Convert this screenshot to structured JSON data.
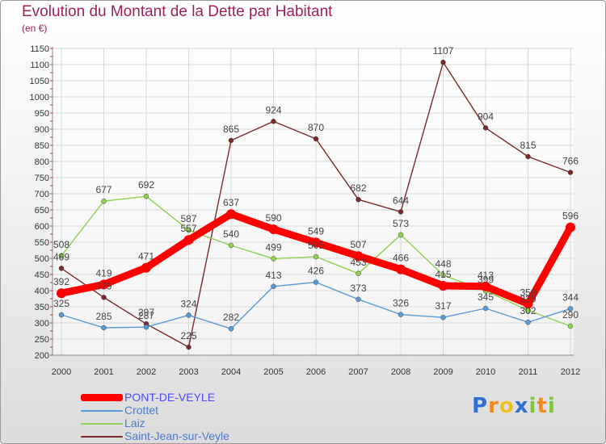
{
  "chart_data": {
    "type": "line",
    "title": "Evolution du Montant de la Dette par Habitant",
    "subtitle": "(en €)",
    "xlabel": "",
    "ylabel": "",
    "ylim": [
      200,
      1150
    ],
    "ytick_step": 50,
    "grid": true,
    "legend_position": "bottom-left",
    "x": [
      "2000",
      "2001",
      "2002",
      "2003",
      "2004",
      "2005",
      "2006",
      "2007",
      "2008",
      "2009",
      "2010",
      "2011",
      "2012"
    ],
    "series": [
      {
        "name": "PONT-DE-VEYLE",
        "color": "#ff0000",
        "values": [
          392,
          419,
          471,
          557,
          637,
          590,
          549,
          507,
          466,
          415,
          413,
          359,
          596
        ]
      },
      {
        "name": "Crottet",
        "color": "#5b9bd5",
        "values": [
          325,
          285,
          287,
          324,
          282,
          413,
          426,
          373,
          326,
          317,
          345,
          302,
          344
        ]
      },
      {
        "name": "Laiz",
        "color": "#8fd14f",
        "values": [
          508,
          677,
          692,
          587,
          540,
          499,
          505,
          453,
          573,
          448,
          399,
          339,
          290
        ]
      },
      {
        "name": "Saint-Jean-sur-Veyle",
        "color": "#7a2a2a",
        "values": [
          469,
          379,
          297,
          225,
          865,
          924,
          870,
          682,
          644,
          1107,
          904,
          815,
          766
        ]
      }
    ]
  },
  "logo": {
    "text": "Proxiti",
    "letters": [
      {
        "ch": "P",
        "color": "#2f6fd6"
      },
      {
        "ch": "r",
        "color": "#f08a1a"
      },
      {
        "ch": "o",
        "color": "#f0c020"
      },
      {
        "ch": "x",
        "color": "#2f6fd6"
      },
      {
        "ch": "i",
        "color": "#7cc63c"
      },
      {
        "ch": "t",
        "color": "#f08a1a"
      },
      {
        "ch": "i",
        "color": "#7cc63c"
      }
    ]
  }
}
